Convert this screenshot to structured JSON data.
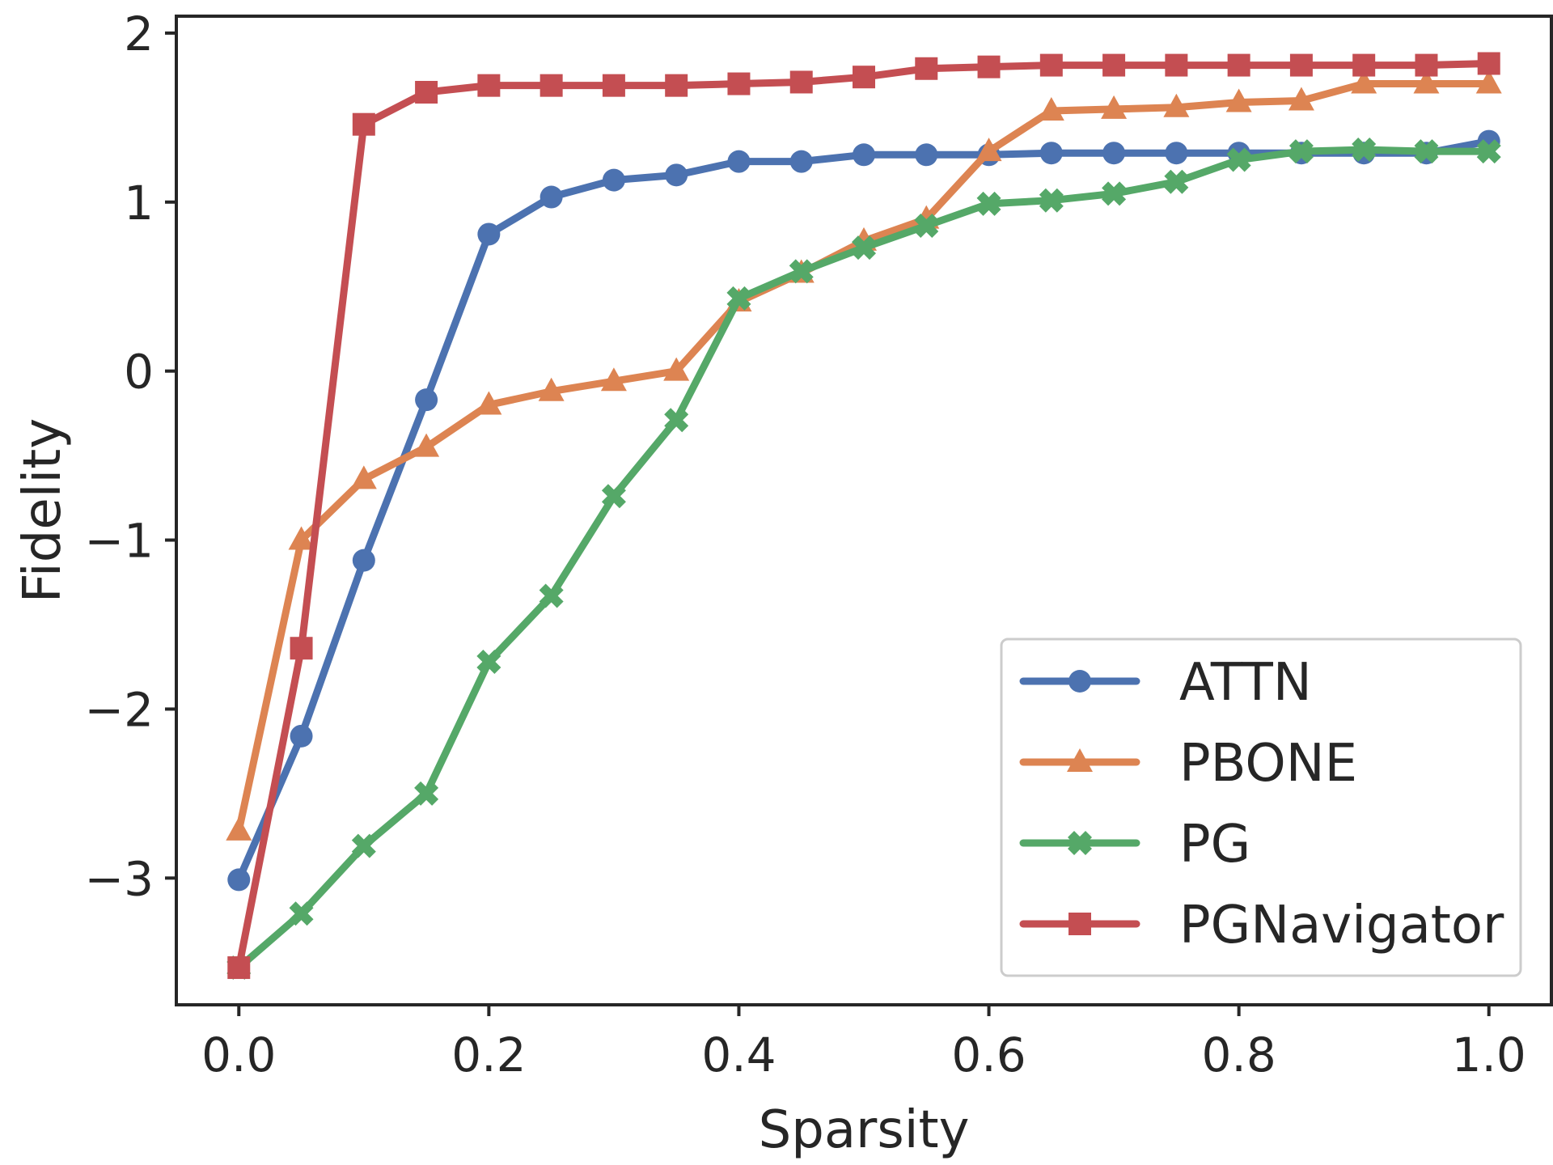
{
  "chart_data": {
    "type": "line",
    "xlabel": "Sparsity",
    "ylabel": "Fidelity",
    "xlim": [
      -0.05,
      1.05
    ],
    "ylim": [
      -3.75,
      2.1
    ],
    "xticks": [
      0.0,
      0.2,
      0.4,
      0.6,
      0.8,
      1.0
    ],
    "xtick_labels": [
      "0.0",
      "0.2",
      "0.4",
      "0.6",
      "0.8",
      "1.0"
    ],
    "yticks": [
      -3,
      -2,
      -1,
      0,
      1,
      2
    ],
    "ytick_labels": [
      "−3",
      "−2",
      "−1",
      "0",
      "1",
      "2"
    ],
    "grid": false,
    "legend_position": "lower-right",
    "x": [
      0.0,
      0.05,
      0.1,
      0.15,
      0.2,
      0.25,
      0.3,
      0.35,
      0.4,
      0.45,
      0.5,
      0.55,
      0.6,
      0.65,
      0.7,
      0.75,
      0.8,
      0.85,
      0.9,
      0.95,
      1.0
    ],
    "series": [
      {
        "name": "ATTN",
        "color": "#4c72b0",
        "marker": "circle",
        "values": [
          -3.01,
          -2.16,
          -1.12,
          -0.17,
          0.81,
          1.03,
          1.13,
          1.16,
          1.24,
          1.24,
          1.28,
          1.28,
          1.28,
          1.29,
          1.29,
          1.29,
          1.29,
          1.29,
          1.29,
          1.29,
          1.36
        ]
      },
      {
        "name": "PBONE",
        "color": "#dd8452",
        "marker": "triangle",
        "values": [
          -2.72,
          -1.0,
          -0.64,
          -0.45,
          -0.2,
          -0.12,
          -0.06,
          0.0,
          0.41,
          0.58,
          0.77,
          0.9,
          1.3,
          1.54,
          1.55,
          1.56,
          1.59,
          1.6,
          1.7,
          1.7,
          1.7
        ]
      },
      {
        "name": "PG",
        "color": "#55a868",
        "marker": "x",
        "values": [
          -3.53,
          -3.21,
          -2.81,
          -2.5,
          -1.72,
          -1.33,
          -0.74,
          -0.29,
          0.43,
          0.59,
          0.73,
          0.86,
          0.99,
          1.01,
          1.05,
          1.12,
          1.25,
          1.3,
          1.31,
          1.3,
          1.3
        ]
      },
      {
        "name": "PGNavigator",
        "color": "#c44e52",
        "marker": "square",
        "values": [
          -3.53,
          -1.64,
          1.46,
          1.65,
          1.69,
          1.69,
          1.69,
          1.69,
          1.7,
          1.71,
          1.74,
          1.79,
          1.8,
          1.81,
          1.81,
          1.81,
          1.81,
          1.81,
          1.81,
          1.81,
          1.82
        ]
      }
    ]
  }
}
